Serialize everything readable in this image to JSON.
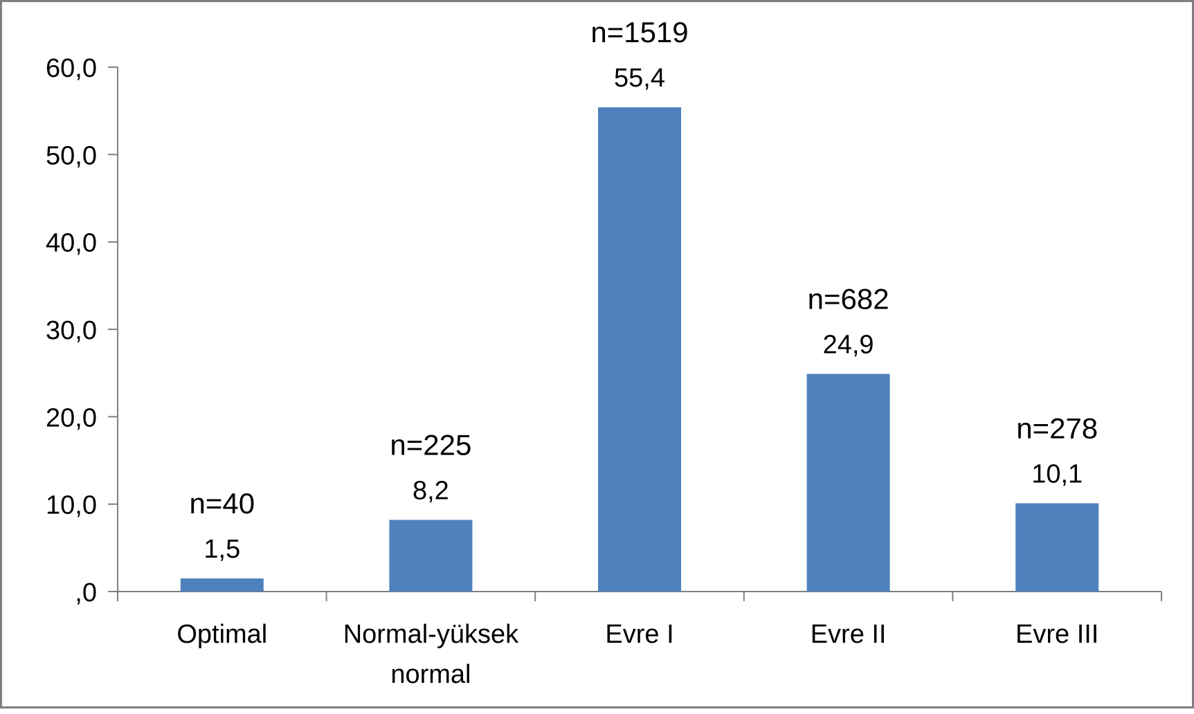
{
  "chart_data": {
    "type": "bar",
    "categories": [
      [
        "Optimal"
      ],
      [
        "Normal-yüksek",
        "normal"
      ],
      [
        "Evre I"
      ],
      [
        "Evre II"
      ],
      [
        "Evre III"
      ]
    ],
    "values": [
      1.5,
      8.2,
      55.4,
      24.9,
      10.1
    ],
    "value_labels": [
      "1,5",
      "8,2",
      "55,4",
      "24,9",
      "10,1"
    ],
    "n_labels": [
      "n=40",
      "n=225",
      "n=1519",
      "n=682",
      "n=278"
    ],
    "ylim": [
      0,
      60
    ],
    "yticks": [
      0,
      10,
      20,
      30,
      40,
      50,
      60
    ],
    "ytick_labels": [
      ",0",
      "10,0",
      "20,0",
      "30,0",
      "40,0",
      "50,0",
      "60,0"
    ],
    "title": "",
    "xlabel": "",
    "ylabel": "",
    "bar_color": "#4f81bd",
    "axis_color": "#7f7f7f",
    "grid": false,
    "legend": "none"
  }
}
